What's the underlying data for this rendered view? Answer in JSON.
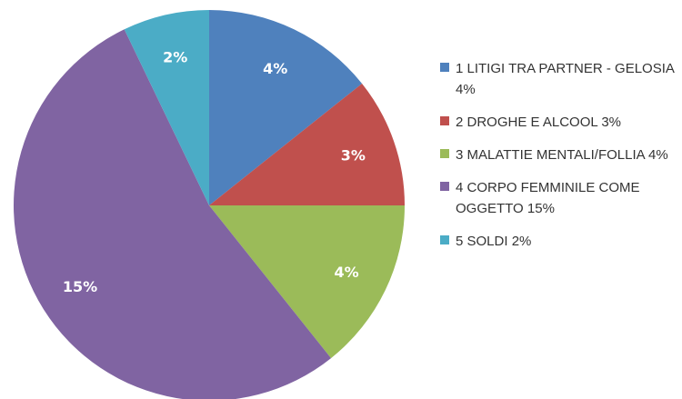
{
  "chart_data": {
    "type": "pie",
    "title": "",
    "legend_position": "right",
    "slices": [
      {
        "label": "1 LITIGI TRA PARTNER - GELOSIA 4%",
        "data_label": "4%",
        "value": 4,
        "color": "#4F81BD"
      },
      {
        "label": "2 DROGHE E ALCOOL 3%",
        "data_label": "3%",
        "value": 3,
        "color": "#C0504D"
      },
      {
        "label": "3 MALATTIE MENTALI/FOLLIA 4%",
        "data_label": "4%",
        "value": 4,
        "color": "#9BBB59"
      },
      {
        "label": "4 CORPO FEMMINILE COME OGGETTO 15%",
        "data_label": "15%",
        "value": 15,
        "color": "#8064A2"
      },
      {
        "label": "5 SOLDI 2%",
        "data_label": "2%",
        "value": 2,
        "color": "#4BACC6"
      }
    ]
  }
}
